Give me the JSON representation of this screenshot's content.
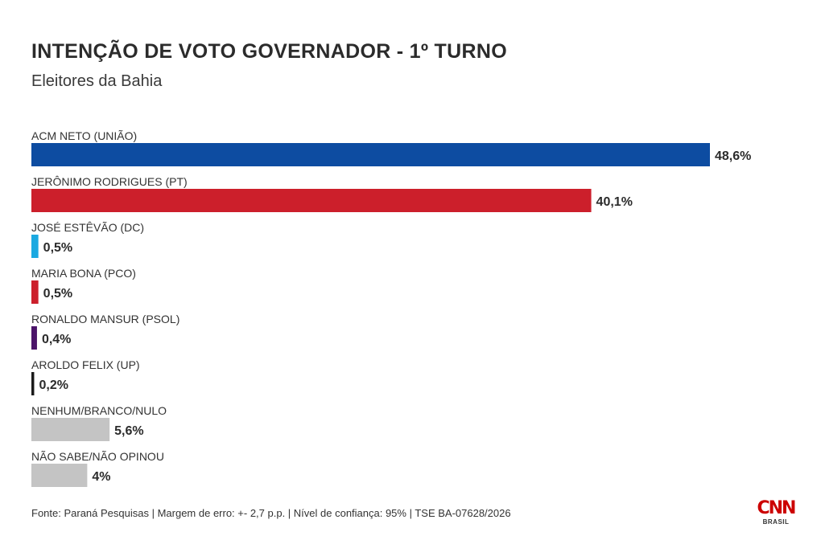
{
  "title": "INTENÇÃO DE VOTO GOVERNADOR - 1º TURNO",
  "subtitle": "Eleitores da Bahia",
  "footer": "Fonte: Paraná Pesquisas | Margem de erro: +- 2,7 p.p. | Nível de confiança: 95% | TSE BA-07628/2026",
  "brand": {
    "name": "CNN",
    "sub": "BRASIL"
  },
  "chart_data": {
    "type": "bar",
    "orientation": "horizontal",
    "title": "INTENÇÃO DE VOTO GOVERNADOR - 1º TURNO",
    "subtitle": "Eleitores da Bahia",
    "xlim": [
      0,
      48.6
    ],
    "grid": false,
    "categories": [
      "ACM NETO (UNIÃO)",
      "JERÔNIMO RODRIGUES (PT)",
      "JOSÉ ESTÊVÃO (DC)",
      "MARIA BONA (PCO)",
      "RONALDO MANSUR (PSOL)",
      "AROLDO FELIX (UP)",
      "NENHUM/BRANCO/NULO",
      "NÃO SABE/NÃO OPINOU"
    ],
    "values": [
      48.6,
      40.1,
      0.5,
      0.5,
      0.4,
      0.2,
      5.6,
      4
    ],
    "value_labels": [
      "48,6%",
      "40,1%",
      "0,5%",
      "0,5%",
      "0,4%",
      "0,2%",
      "5,6%",
      "4%"
    ],
    "colors": [
      "#0d4ca1",
      "#cc1f2b",
      "#1ba9e1",
      "#cc1f2b",
      "#4b1469",
      "#1a1a1a",
      "#c4c4c4",
      "#c4c4c4"
    ]
  }
}
